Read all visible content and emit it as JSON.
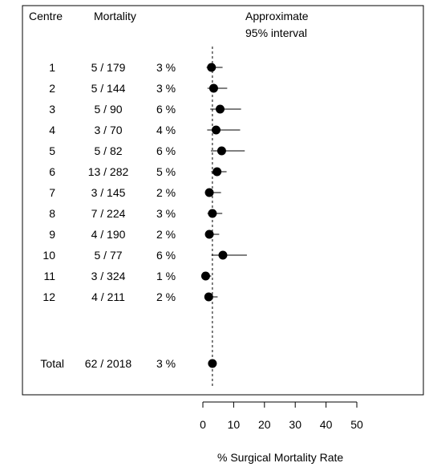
{
  "chart_data": {
    "type": "forest",
    "title": "",
    "column_headers": {
      "centre": "Centre",
      "mortality": "Mortality",
      "interval_line1": "Approximate",
      "interval_line2": "95% interval"
    },
    "rows": [
      {
        "label": "1",
        "counts": "5 / 179",
        "rate_label": "3 %",
        "rate": 2.8,
        "lower": 1.2,
        "upper": 6.4
      },
      {
        "label": "2",
        "counts": "5 / 144",
        "rate_label": "3 %",
        "rate": 3.5,
        "lower": 1.5,
        "upper": 7.9
      },
      {
        "label": "3",
        "counts": "5 / 90",
        "rate_label": "6 %",
        "rate": 5.6,
        "lower": 2.4,
        "upper": 12.4
      },
      {
        "label": "4",
        "counts": "3 / 70",
        "rate_label": "4 %",
        "rate": 4.3,
        "lower": 1.4,
        "upper": 12.1
      },
      {
        "label": "5",
        "counts": "5 / 82",
        "rate_label": "6 %",
        "rate": 6.1,
        "lower": 2.6,
        "upper": 13.6
      },
      {
        "label": "6",
        "counts": "13 / 282",
        "rate_label": "5 %",
        "rate": 4.6,
        "lower": 2.7,
        "upper": 7.7
      },
      {
        "label": "7",
        "counts": "3 / 145",
        "rate_label": "2 %",
        "rate": 2.1,
        "lower": 0.7,
        "upper": 5.9
      },
      {
        "label": "8",
        "counts": "7 / 224",
        "rate_label": "3 %",
        "rate": 3.1,
        "lower": 1.5,
        "upper": 6.3
      },
      {
        "label": "9",
        "counts": "4 / 190",
        "rate_label": "2 %",
        "rate": 2.1,
        "lower": 0.8,
        "upper": 5.3
      },
      {
        "label": "10",
        "counts": "5 / 77",
        "rate_label": "6 %",
        "rate": 6.5,
        "lower": 2.8,
        "upper": 14.3
      },
      {
        "label": "11",
        "counts": "3 / 324",
        "rate_label": "1 %",
        "rate": 0.9,
        "lower": 0.3,
        "upper": 2.7
      },
      {
        "label": "12",
        "counts": "4 / 211",
        "rate_label": "2 %",
        "rate": 1.9,
        "lower": 0.7,
        "upper": 4.8
      }
    ],
    "total": {
      "label": "Total",
      "counts": "62 / 2018",
      "rate_label": "3 %",
      "rate": 3.1
    },
    "reference_line": 3.1,
    "x_ticks": [
      0,
      10,
      20,
      30,
      40,
      50
    ],
    "xlim": [
      0,
      50
    ],
    "xlabel": "% Surgical Mortality Rate"
  }
}
